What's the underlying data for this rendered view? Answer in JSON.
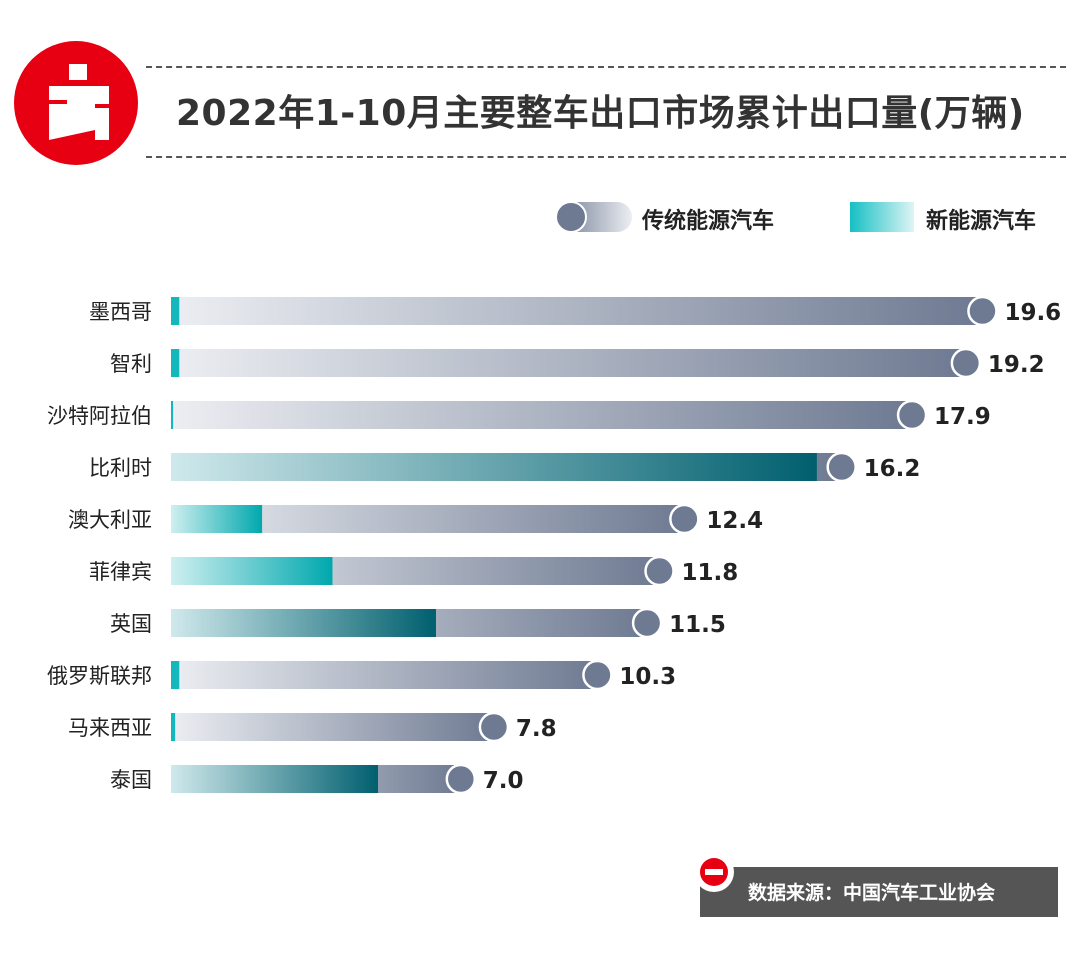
{
  "title": "2022年1-10月主要整车出口市场累计出口量(万辆)",
  "source": "数据来源：中国汽车工业协会",
  "colors": {
    "brand_red": "#e60012",
    "traditional_dark": "#6e7a92",
    "traditional_light": "#eceef2",
    "nev_dark": "#005f6e",
    "nev_light": "#cfe9ec",
    "nev_legend": "#14c0c4"
  },
  "legend": {
    "traditional": "传统能源汽车",
    "nev": "新能源汽车"
  },
  "chart_data": {
    "type": "bar",
    "orientation": "horizontal",
    "categories": [
      "墨西哥",
      "智利",
      "沙特阿拉伯",
      "比利时",
      "澳大利亚",
      "菲律宾",
      "英国",
      "俄罗斯联邦",
      "马来西亚",
      "泰国"
    ],
    "totals": [
      19.6,
      19.2,
      17.9,
      16.2,
      12.4,
      11.8,
      11.5,
      10.3,
      7.8,
      7.0
    ],
    "total_labels": [
      "19.6",
      "19.2",
      "17.9",
      "16.2",
      "12.4",
      "11.8",
      "11.5",
      "10.3",
      "7.8",
      "7.0"
    ],
    "series": [
      {
        "name": "新能源汽车",
        "values": [
          0.2,
          0.2,
          0.05,
          15.6,
          2.2,
          3.9,
          6.4,
          0.2,
          0.1,
          5.0
        ]
      },
      {
        "name": "传统能源汽车",
        "values": [
          19.4,
          19.0,
          17.85,
          0.6,
          10.2,
          7.9,
          5.1,
          10.1,
          7.7,
          2.0
        ]
      }
    ],
    "legend_position": "top-right",
    "grid": false
  }
}
